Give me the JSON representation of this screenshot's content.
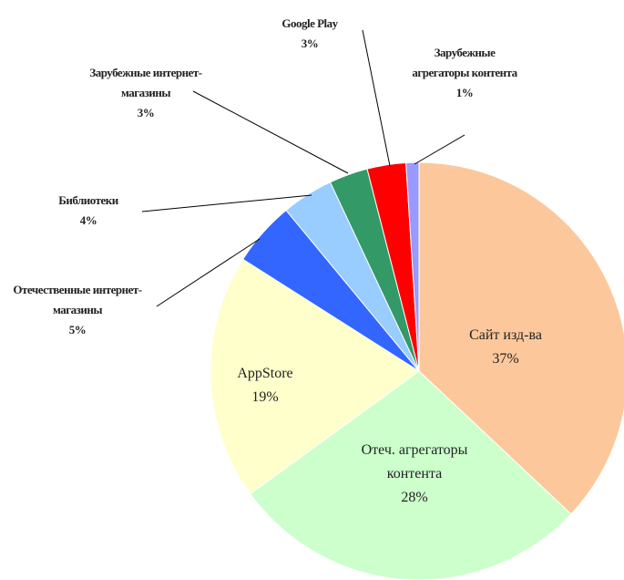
{
  "chart_data": {
    "type": "pie",
    "categories": [
      "Сайт изд-ва",
      "Отеч. агрегаторы контента",
      "AppStore",
      "Отечественные интернет-магазины",
      "Библиотеки",
      "Зарубежные интернет-магазины",
      "Google Play",
      "Зарубежные агрегаторы контента"
    ],
    "values": [
      37,
      28,
      19,
      5,
      4,
      3,
      3,
      1
    ],
    "value_labels": [
      "37%",
      "28%",
      "19%",
      "5%",
      "4%",
      "3%",
      "3%",
      "1%"
    ],
    "colors": [
      "#fcc89b",
      "#ccffcc",
      "#ffffcc",
      "#3366ff",
      "#99ccff",
      "#339966",
      "#ff0000",
      "#9999ff"
    ]
  }
}
